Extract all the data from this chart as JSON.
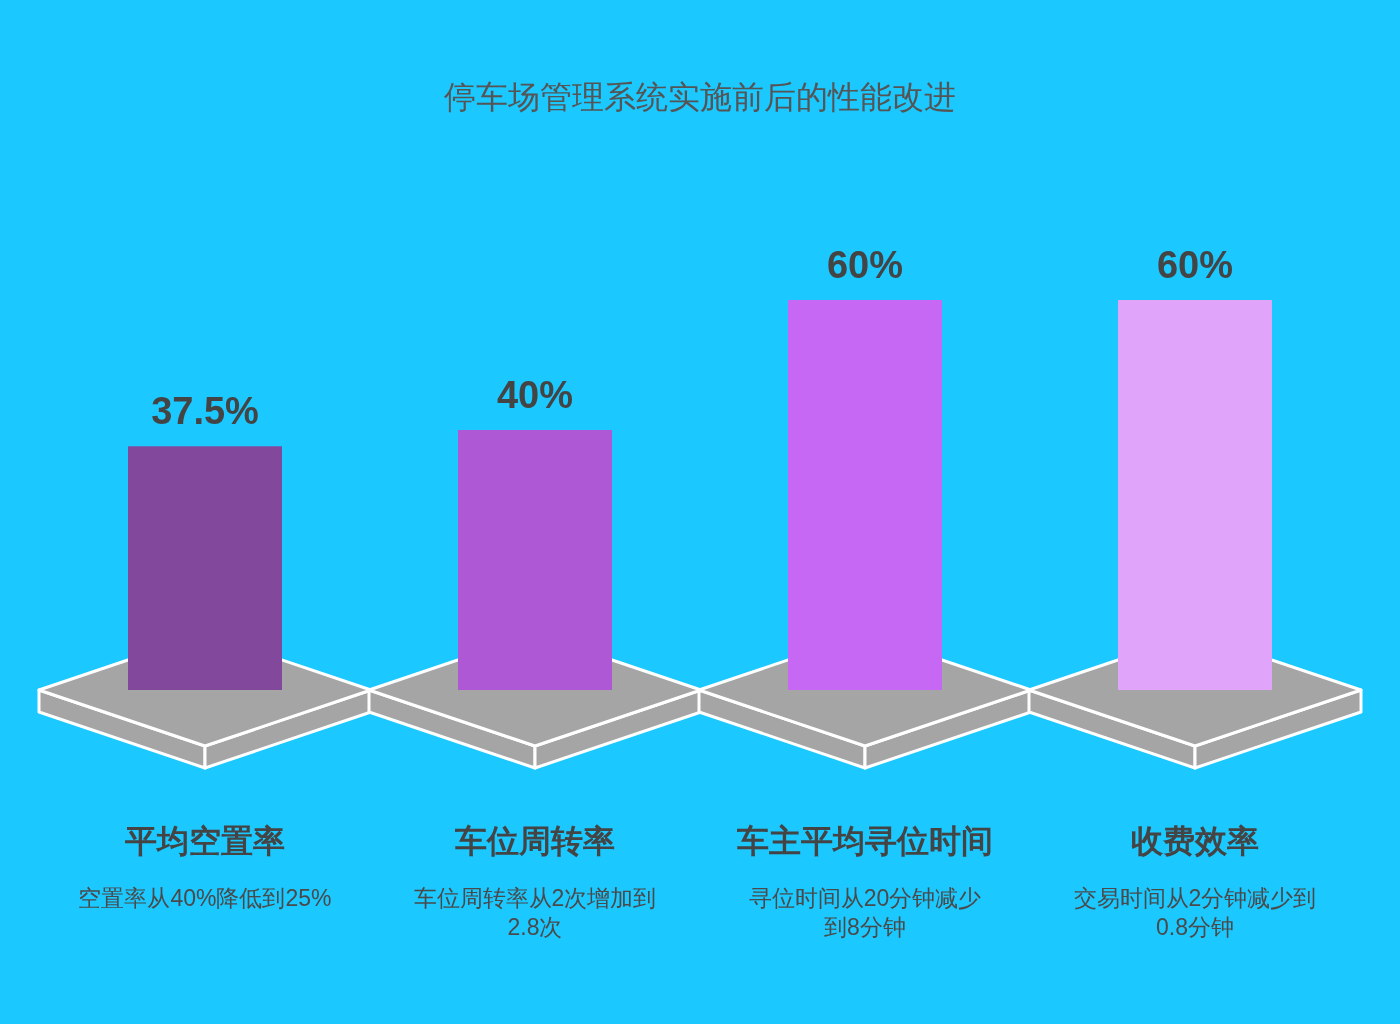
{
  "chart_data": {
    "type": "bar",
    "title": "停车场管理系统实施前后的性能改进",
    "categories": [
      "平均空置率",
      "车位周转率",
      "车主平均寻位时间",
      "收费效率"
    ],
    "values": [
      37.5,
      40,
      60,
      60
    ],
    "value_labels": [
      "37.5%",
      "40%",
      "60%",
      "60%"
    ],
    "colors": [
      "#82489c",
      "#ae58d6",
      "#c668f4",
      "#e0a4fa"
    ],
    "annotations": [
      "空置率从40%降低到25%",
      "车位周转率从2次增加到2.8次",
      "寻位时间从20分钟减少到8分钟",
      "交易时间从2分钟减少到0.8分钟"
    ]
  }
}
